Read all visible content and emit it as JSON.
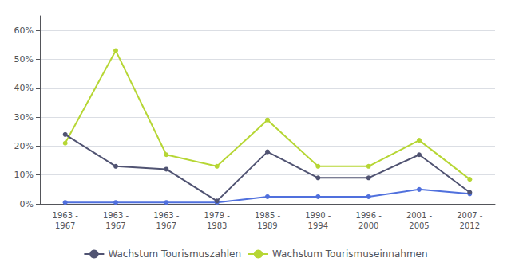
{
  "chart_data": {
    "type": "line",
    "categories": [
      "1963 -\n1967",
      "1963 -\n1967",
      "1963 -\n1967",
      "1979 -\n1983",
      "1985 -\n1989",
      "1990 -\n1994",
      "1996 -\n2000",
      "2001 -\n2005",
      "2007 -\n2012"
    ],
    "series": [
      {
        "values": [
          0.005,
          0.005,
          0.005,
          0.005,
          0.025,
          0.025,
          0.025,
          0.05,
          0.035
        ]
      },
      {
        "name": "Wachstum Tourismuseinnahmen",
        "values": [
          0.21,
          0.53,
          0.17,
          0.13,
          0.29,
          0.13,
          0.13,
          0.22,
          0.085
        ]
      },
      {
        "name": "Wachstum Tourismuszahlen",
        "values": [
          0.24,
          0.13,
          0.12,
          0.01,
          0.18,
          0.09,
          0.09,
          0.17,
          0.04
        ]
      }
    ],
    "ylim": [
      0,
      0.65
    ],
    "yticks": [
      {
        "value": 0.0,
        "label": "0%"
      },
      {
        "value": 0.1,
        "label": "10%"
      },
      {
        "value": 0.2,
        "label": "20%"
      },
      {
        "value": 0.3,
        "label": "30%"
      },
      {
        "value": 0.4,
        "label": "40%"
      },
      {
        "value": 0.5,
        "label": "50%"
      },
      {
        "value": 0.6,
        "label": "60%"
      }
    ],
    "grid": true,
    "legend": "bottom",
    "marker": "circle"
  }
}
